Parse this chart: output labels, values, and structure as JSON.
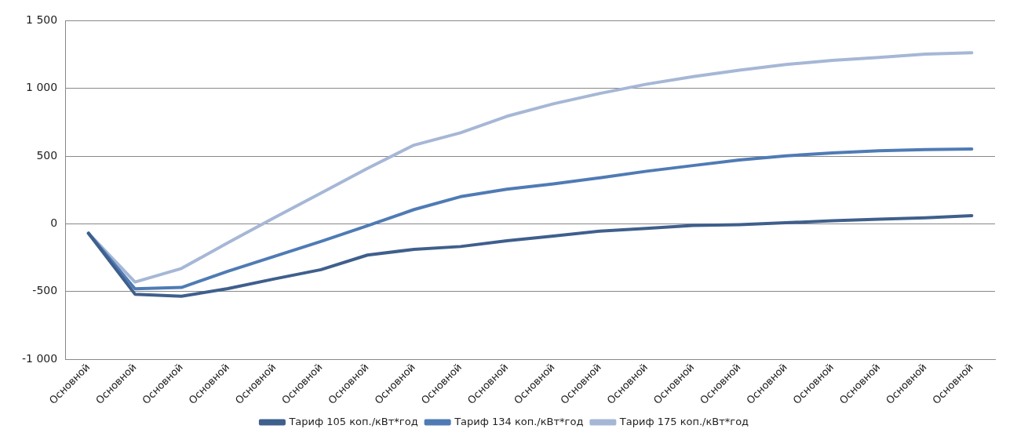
{
  "chart_data": {
    "type": "line",
    "categories": [
      "Основной",
      "Основной",
      "Основной",
      "Основной",
      "Основной",
      "Основной",
      "Основной",
      "Основной",
      "Основной",
      "Основной",
      "Основной",
      "Основной",
      "Основной",
      "Основной",
      "Основной",
      "Основной",
      "Основной",
      "Основной",
      "Основной",
      "Основной"
    ],
    "series": [
      {
        "name": "Тариф 105 коп./кВт*год",
        "color": "#3f5f8c",
        "values": [
          -70,
          -520,
          -535,
          -479,
          -407,
          -339,
          -231,
          -189,
          -168,
          -125,
          -91,
          -54,
          -34,
          -13,
          -6,
          8,
          22,
          34,
          44,
          60
        ]
      },
      {
        "name": "Тариф 134 коп./кВт*год",
        "color": "#4f7bb5",
        "values": [
          -70,
          -480,
          -470,
          -350,
          -240,
          -130,
          -15,
          105,
          200,
          255,
          295,
          340,
          388,
          430,
          471,
          502,
          523,
          539,
          548,
          552
        ]
      },
      {
        "name": "Тариф 175 коп./кВт*год",
        "color": "#a6b7d6",
        "values": [
          -70,
          -430,
          -330,
          -140,
          45,
          227,
          409,
          581,
          672,
          794,
          886,
          963,
          1031,
          1087,
          1135,
          1176,
          1207,
          1228,
          1253,
          1263
        ]
      }
    ],
    "ylim": [
      -1000,
      1500
    ],
    "yticks": [
      {
        "value": -1000,
        "label": "-1 000"
      },
      -500,
      0,
      500,
      {
        "value": 1000,
        "label": "1 000"
      },
      {
        "value": 1500,
        "label": "1 500"
      }
    ],
    "grid": "y",
    "legend": "bottom",
    "marker": "none",
    "line_style": "solid"
  }
}
